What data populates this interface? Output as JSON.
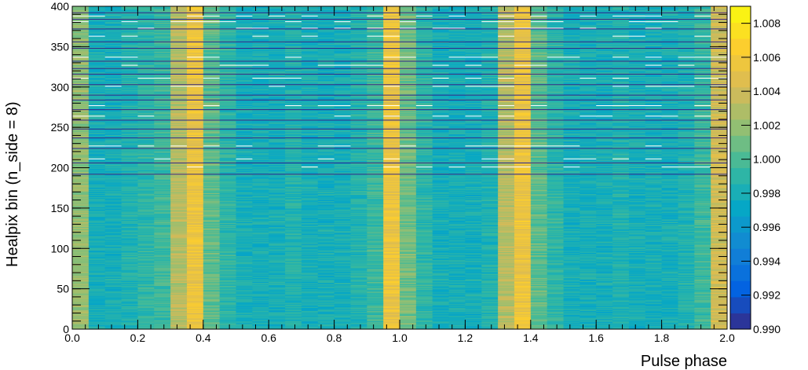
{
  "chart_data": {
    "type": "heatmap",
    "title": "",
    "xlabel": "Pulse phase",
    "ylabel": "Healpix bin (n_side = 8)",
    "xlim": [
      0.0,
      2.0
    ],
    "ylim": [
      0,
      400
    ],
    "x_bins": 40,
    "y_bins": 400,
    "x_ticks": [
      0.0,
      0.2,
      0.4,
      0.6,
      0.8,
      1.0,
      1.2,
      1.4,
      1.6,
      1.8,
      2.0
    ],
    "x_tick_labels": [
      "0.0",
      "0.2",
      "0.4",
      "0.6",
      "0.8",
      "1.0",
      "1.2",
      "1.4",
      "1.6",
      "1.8",
      "2.0"
    ],
    "y_ticks": [
      0,
      50,
      100,
      150,
      200,
      250,
      300,
      350,
      400
    ],
    "y_tick_labels": [
      "0",
      "50",
      "100",
      "150",
      "200",
      "250",
      "300",
      "350",
      "400"
    ],
    "z_range": [
      0.99,
      1.009
    ],
    "colorbar_ticks": [
      0.99,
      0.992,
      0.994,
      0.996,
      0.998,
      1.0,
      1.002,
      1.004,
      1.006,
      1.008
    ],
    "colorbar_tick_labels": [
      "0.990",
      "0.992",
      "0.994",
      "0.996",
      "0.998",
      "1.000",
      "1.002",
      "1.004",
      "1.006",
      "1.008"
    ],
    "colormap": [
      "#352a87",
      "#0363e1",
      "#1485d4",
      "#06a7c6",
      "#38b99e",
      "#92bf73",
      "#d9ba56",
      "#fcce2e",
      "#f9fb0e"
    ],
    "phase_profile": {
      "phase_centers": [
        0.025,
        0.075,
        0.125,
        0.175,
        0.225,
        0.275,
        0.325,
        0.375,
        0.425,
        0.475,
        0.525,
        0.575,
        0.625,
        0.675,
        0.725,
        0.775,
        0.825,
        0.875,
        0.925,
        0.975,
        1.025,
        1.075,
        1.125,
        1.175,
        1.225,
        1.275,
        1.325,
        1.375,
        1.425,
        1.475,
        1.525,
        1.575,
        1.625,
        1.675,
        1.725,
        1.775,
        1.825,
        1.875,
        1.925,
        1.975
      ],
      "mean_values": [
        1.002,
        0.998,
        0.998,
        0.9985,
        0.999,
        0.9995,
        1.003,
        1.0055,
        1.0005,
        0.999,
        0.998,
        0.998,
        0.998,
        0.9985,
        0.998,
        0.998,
        0.998,
        0.9985,
        0.9995,
        1.0055,
        1.001,
        0.999,
        0.998,
        0.998,
        0.998,
        0.9985,
        1.003,
        1.0055,
        1.0005,
        0.999,
        0.998,
        0.998,
        0.998,
        0.9985,
        0.998,
        0.998,
        0.998,
        0.9985,
        0.9995,
        1.004
      ]
    },
    "low_value_rows": [
      192,
      206,
      224,
      237,
      248,
      259,
      272,
      284,
      290,
      303,
      316,
      323,
      332,
      348,
      356,
      372,
      384,
      392
    ],
    "high_value_highlight_rows": [
      201,
      211,
      227,
      264,
      277,
      301,
      311,
      327,
      337,
      363,
      373,
      381,
      388
    ],
    "noise_amplitude": 0.0012
  }
}
